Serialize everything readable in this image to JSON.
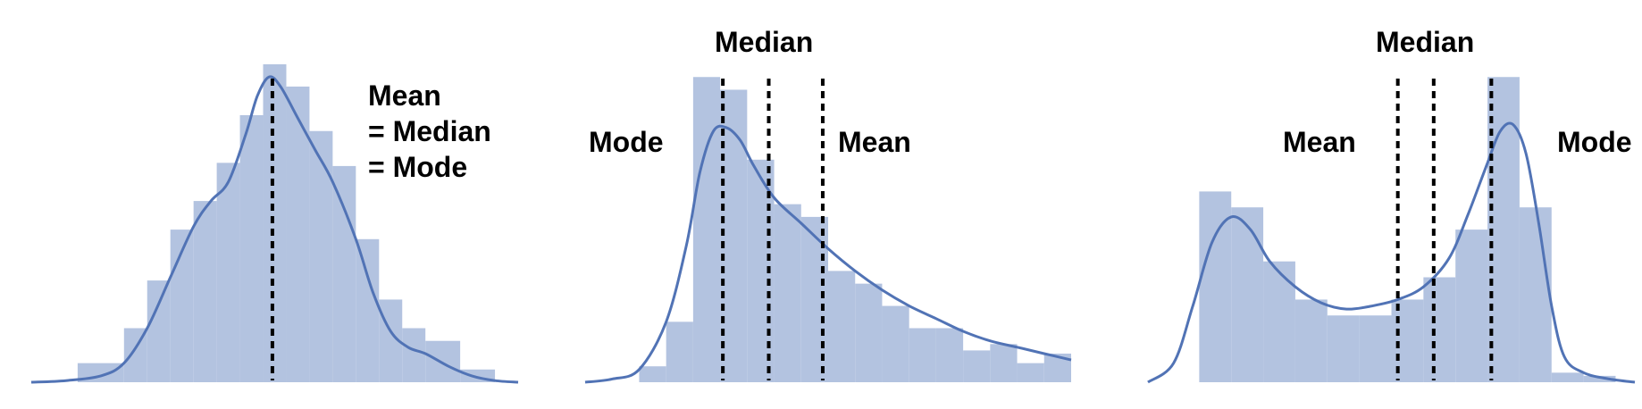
{
  "colors": {
    "bar": "#b3c3e0",
    "kde": "#5173b5",
    "marker_line": "#000000"
  },
  "chart_data": [
    {
      "type": "bar",
      "title": "",
      "xlabel": "",
      "ylabel": "",
      "ylim": [
        0,
        100
      ],
      "grid": false,
      "legend": "none",
      "bins": [
        {
          "x0": 0,
          "x1": 4,
          "value": 0
        },
        {
          "x0": 4,
          "x1": 8,
          "value": 6
        },
        {
          "x0": 8,
          "x1": 10,
          "value": 17
        },
        {
          "x0": 10,
          "x1": 12,
          "value": 32
        },
        {
          "x0": 12,
          "x1": 14,
          "value": 48
        },
        {
          "x0": 14,
          "x1": 16,
          "value": 57
        },
        {
          "x0": 16,
          "x1": 18,
          "value": 69
        },
        {
          "x0": 18,
          "x1": 20,
          "value": 84
        },
        {
          "x0": 20,
          "x1": 22,
          "value": 100
        },
        {
          "x0": 22,
          "x1": 24,
          "value": 93
        },
        {
          "x0": 24,
          "x1": 26,
          "value": 79
        },
        {
          "x0": 26,
          "x1": 28,
          "value": 68
        },
        {
          "x0": 28,
          "x1": 30,
          "value": 45
        },
        {
          "x0": 30,
          "x1": 32,
          "value": 26
        },
        {
          "x0": 32,
          "x1": 34,
          "value": 17
        },
        {
          "x0": 34,
          "x1": 37,
          "value": 13
        },
        {
          "x0": 37,
          "x1": 40,
          "value": 4
        }
      ],
      "kde": {
        "x": [
          0,
          3,
          6,
          8,
          10,
          12,
          14,
          15.5,
          17,
          18.5,
          19.5,
          20.5,
          21.5,
          23,
          24.5,
          26,
          28,
          29.5,
          31,
          32.5,
          34,
          36,
          38,
          40,
          42
        ],
        "y": [
          0,
          0.5,
          2,
          6,
          17,
          33,
          49,
          57,
          63,
          78,
          90,
          96,
          93,
          83,
          73,
          63,
          45,
          28,
          16,
          11,
          9,
          5,
          2,
          0.5,
          0
        ]
      },
      "markers": [
        {
          "x": 20.8,
          "name": "mean"
        }
      ],
      "annotations": [
        "Mean",
        "= Median",
        "= Mode"
      ]
    },
    {
      "type": "bar",
      "title": "",
      "xlabel": "",
      "ylabel": "",
      "ylim": [
        0,
        100
      ],
      "grid": false,
      "legend": "none",
      "bins": [
        {
          "x0": 4,
          "x1": 6,
          "value": 5
        },
        {
          "x0": 6,
          "x1": 8,
          "value": 19
        },
        {
          "x0": 8,
          "x1": 10,
          "value": 96
        },
        {
          "x0": 10,
          "x1": 12,
          "value": 92
        },
        {
          "x0": 12,
          "x1": 14,
          "value": 70
        },
        {
          "x0": 14,
          "x1": 16,
          "value": 56
        },
        {
          "x0": 16,
          "x1": 18,
          "value": 52
        },
        {
          "x0": 18,
          "x1": 20,
          "value": 35
        },
        {
          "x0": 20,
          "x1": 22,
          "value": 31
        },
        {
          "x0": 22,
          "x1": 24,
          "value": 24
        },
        {
          "x0": 24,
          "x1": 26,
          "value": 17
        },
        {
          "x0": 26,
          "x1": 28,
          "value": 17
        },
        {
          "x0": 28,
          "x1": 30,
          "value": 10
        },
        {
          "x0": 30,
          "x1": 32,
          "value": 12
        },
        {
          "x0": 32,
          "x1": 34,
          "value": 6
        },
        {
          "x0": 34,
          "x1": 36,
          "value": 9
        }
      ],
      "kde": {
        "x": [
          0,
          2,
          4,
          6,
          7.5,
          8.5,
          9.5,
          10.5,
          11.5,
          12.5,
          14,
          16,
          18,
          20,
          22,
          24,
          26,
          28,
          30,
          32,
          34,
          36
        ],
        "y": [
          0,
          1,
          4,
          19,
          43,
          66,
          79,
          80,
          76,
          68,
          58,
          50,
          42,
          35,
          29,
          24,
          20,
          16,
          13,
          11,
          9,
          7
        ]
      },
      "markers": [
        {
          "x": 10.2,
          "name": "mode"
        },
        {
          "x": 13.6,
          "name": "median"
        },
        {
          "x": 17.6,
          "name": "mean"
        }
      ],
      "annotations": [
        "Median",
        "Mode",
        "Mean"
      ]
    },
    {
      "type": "bar",
      "title": "",
      "xlabel": "",
      "ylabel": "",
      "ylim": [
        0,
        100
      ],
      "grid": false,
      "legend": "none",
      "bins": [
        {
          "x0": 4,
          "x1": 6.5,
          "value": 60
        },
        {
          "x0": 6.5,
          "x1": 9,
          "value": 55
        },
        {
          "x0": 9,
          "x1": 11.5,
          "value": 38
        },
        {
          "x0": 11.5,
          "x1": 14,
          "value": 26
        },
        {
          "x0": 14,
          "x1": 16.5,
          "value": 21
        },
        {
          "x0": 16.5,
          "x1": 19,
          "value": 21
        },
        {
          "x0": 19,
          "x1": 21.5,
          "value": 26
        },
        {
          "x0": 21.5,
          "x1": 24,
          "value": 33
        },
        {
          "x0": 24,
          "x1": 26.5,
          "value": 48
        },
        {
          "x0": 26.5,
          "x1": 29,
          "value": 96
        },
        {
          "x0": 29,
          "x1": 31.5,
          "value": 55
        },
        {
          "x0": 31.5,
          "x1": 34,
          "value": 3
        },
        {
          "x0": 34,
          "x1": 36.5,
          "value": 2
        }
      ],
      "kde": {
        "x": [
          0,
          2,
          3.5,
          5,
          6.5,
          8,
          9.5,
          11.5,
          13.5,
          15.5,
          17.5,
          19.5,
          21.5,
          23.5,
          25,
          26.5,
          27.5,
          28.5,
          29.5,
          30.5,
          31.5,
          32.5,
          34,
          36,
          38
        ],
        "y": [
          0,
          6,
          24,
          44,
          52,
          48,
          38,
          30,
          25,
          23,
          24,
          26,
          30,
          39,
          53,
          69,
          79,
          81,
          72,
          50,
          24,
          8,
          3,
          1,
          0
        ]
      },
      "markers": [
        {
          "x": 19.5,
          "name": "mean"
        },
        {
          "x": 22.3,
          "name": "median"
        },
        {
          "x": 26.8,
          "name": "mode"
        }
      ],
      "annotations": [
        "Median",
        "Mean",
        "Mode"
      ]
    }
  ]
}
